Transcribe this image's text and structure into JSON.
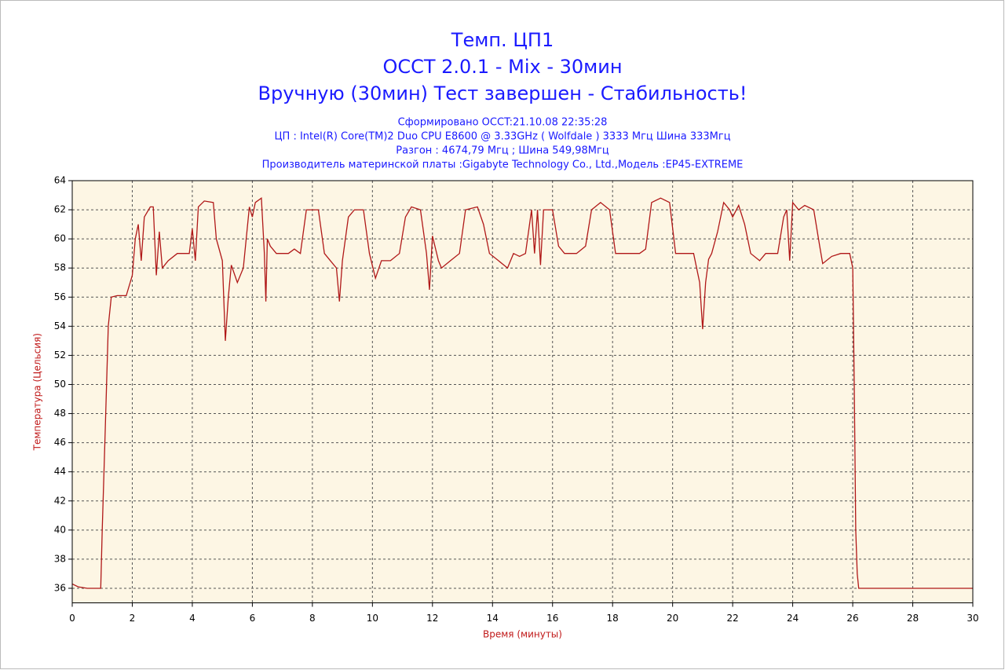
{
  "chart_data": {
    "type": "line",
    "title_lines": [
      "Темп. ЦП1",
      "OCCT 2.0.1 - Mix - 30мин",
      "Вручную (30мин) Тест завершен - Стабильность!"
    ],
    "info_lines": [
      "Сформировано OCCT:21.10.08 22:35:28",
      "ЦП : Intel(R) Core(TM)2 Duo CPU E8600 @ 3.33GHz ( Wolfdale ) 3333 Мгц Шина 333Мгц",
      "Разгон : 4674,79 Мгц ; Шина 549,98Мгц",
      "Производитель материнской платы :Gigabyte Technology Co., Ltd.,Модель :EP45-EXTREME"
    ],
    "xlabel": "Время (минуты)",
    "ylabel": "Температура (Цельсия)",
    "xlim": [
      0,
      30
    ],
    "ylim": [
      35,
      64
    ],
    "xticks": [
      0,
      2,
      4,
      6,
      8,
      10,
      12,
      14,
      16,
      18,
      20,
      22,
      24,
      26,
      28,
      30
    ],
    "yticks": [
      36,
      38,
      40,
      42,
      44,
      46,
      48,
      50,
      52,
      54,
      56,
      58,
      60,
      62,
      64
    ],
    "grid": true,
    "color": "#b01818",
    "x": [
      0,
      0.2,
      0.5,
      0.95,
      1.0,
      1.1,
      1.2,
      1.3,
      1.5,
      1.8,
      2.0,
      2.1,
      2.2,
      2.3,
      2.4,
      2.6,
      2.7,
      2.8,
      2.9,
      3.0,
      3.2,
      3.5,
      3.9,
      4.0,
      4.1,
      4.2,
      4.4,
      4.7,
      4.8,
      5.0,
      5.1,
      5.2,
      5.3,
      5.5,
      5.7,
      5.9,
      6.0,
      6.1,
      6.3,
      6.4,
      6.45,
      6.5,
      6.6,
      6.8,
      7.2,
      7.4,
      7.6,
      7.8,
      8.2,
      8.4,
      8.6,
      8.8,
      8.9,
      9.0,
      9.2,
      9.4,
      9.7,
      9.9,
      10.1,
      10.3,
      10.6,
      10.9,
      11.1,
      11.3,
      11.6,
      11.8,
      11.9,
      12.0,
      12.2,
      12.3,
      12.6,
      12.9,
      13.1,
      13.5,
      13.7,
      13.9,
      14.2,
      14.5,
      14.7,
      14.9,
      15.1,
      15.3,
      15.4,
      15.5,
      15.6,
      15.7,
      16.0,
      16.2,
      16.4,
      16.8,
      17.1,
      17.3,
      17.6,
      17.9,
      18.1,
      18.5,
      18.9,
      19.1,
      19.3,
      19.6,
      19.9,
      20.1,
      20.4,
      20.7,
      20.9,
      21.0,
      21.1,
      21.2,
      21.3,
      21.5,
      21.7,
      21.9,
      22.0,
      22.2,
      22.4,
      22.6,
      22.9,
      23.1,
      23.5,
      23.7,
      23.8,
      23.9,
      24.0,
      24.2,
      24.4,
      24.7,
      24.9,
      25.0,
      25.3,
      25.6,
      25.9,
      26.0,
      26.05,
      26.1,
      26.15,
      26.2,
      27,
      30
    ],
    "values": [
      36.3,
      36.1,
      36,
      36,
      40,
      47,
      54,
      56,
      56.1,
      56.1,
      57.5,
      60,
      61,
      58.5,
      61.5,
      62.2,
      62.2,
      57.5,
      60.5,
      58,
      58.5,
      59,
      59,
      60.7,
      58.5,
      62.2,
      62.6,
      62.5,
      60,
      58.5,
      53,
      56,
      58.2,
      57,
      58,
      62.2,
      61.5,
      62.5,
      62.8,
      59,
      55.7,
      60,
      59.5,
      59,
      59,
      59.3,
      59,
      62,
      62,
      59,
      58.5,
      58,
      55.7,
      58.5,
      61.5,
      62,
      62,
      59,
      57.3,
      58.5,
      58.5,
      59,
      61.5,
      62.2,
      62,
      59,
      56.5,
      60.2,
      58.5,
      58,
      58.5,
      59,
      62,
      62.2,
      61,
      59,
      58.5,
      58,
      59,
      58.8,
      59,
      62,
      59,
      62,
      58.2,
      62,
      62,
      59.5,
      59,
      59,
      59.5,
      62,
      62.5,
      62,
      59,
      59,
      59,
      59.3,
      62.5,
      62.8,
      62.5,
      59,
      59,
      59,
      57,
      53.8,
      57,
      58.6,
      59,
      60.5,
      62.5,
      62,
      61.5,
      62.3,
      61,
      59,
      58.5,
      59,
      59,
      61.5,
      62,
      58.5,
      62.5,
      62,
      62.3,
      62,
      59.5,
      58.3,
      58.8,
      59,
      59,
      58,
      50,
      40,
      37,
      36,
      36,
      36
    ]
  }
}
